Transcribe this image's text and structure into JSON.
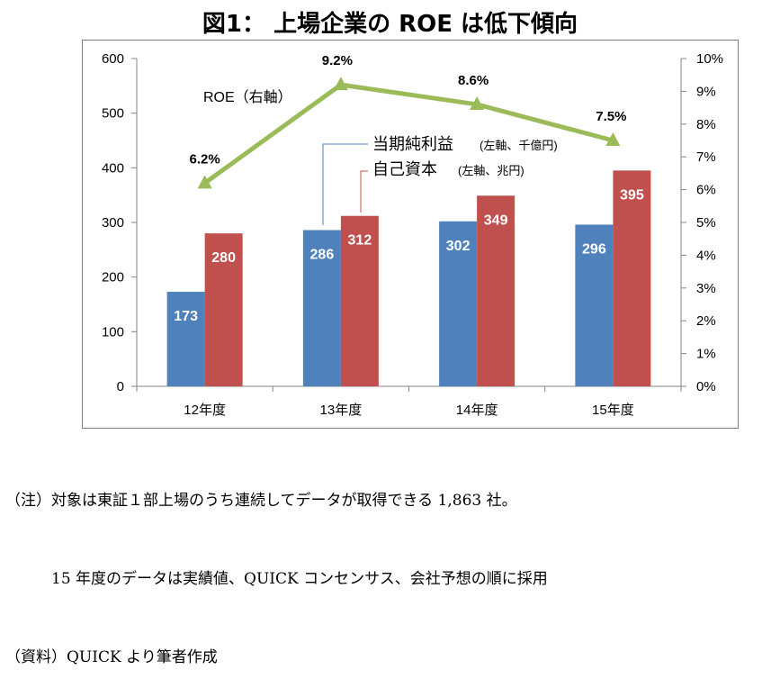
{
  "title": "図1： 上場企業の ROE は低下傾向",
  "chart_data": {
    "type": "bar",
    "categories": [
      "12年度",
      "13年度",
      "14年度",
      "15年度"
    ],
    "series": [
      {
        "name": "当期純利益",
        "axis_note": "(左軸、千億円)",
        "color": "#4f81bd",
        "values": [
          173,
          286,
          302,
          296
        ],
        "labels": [
          "173",
          "286",
          "302",
          "296"
        ]
      },
      {
        "name": "自己資本",
        "axis_note": "(左軸、兆円)",
        "color": "#c0504d",
        "values": [
          280,
          312,
          349,
          395
        ],
        "labels": [
          "280",
          "312",
          "349",
          "395"
        ]
      }
    ],
    "line_series": {
      "name": "ROE（右軸）",
      "color": "#9bbb59",
      "values": [
        6.2,
        9.2,
        8.6,
        7.5
      ],
      "labels": [
        "6.2%",
        "9.2%",
        "8.6%",
        "7.5%"
      ]
    },
    "y_left": {
      "min": 0,
      "max": 600,
      "ticks": [
        "0",
        "100",
        "200",
        "300",
        "400",
        "500",
        "600"
      ]
    },
    "y_right": {
      "min": 0,
      "max": 10,
      "ticks": [
        "0%",
        "1%",
        "2%",
        "3%",
        "4%",
        "5%",
        "6%",
        "7%",
        "8%",
        "9%",
        "10%"
      ]
    },
    "grid": false
  },
  "notes": [
    "（注）対象は東証１部上場のうち連続してデータが取得できる 1,863 社。",
    "　　　15 年度のデータは実績値、QUICK コンセンサス、会社予想の順に採用",
    "（資料）QUICK より筆者作成"
  ]
}
